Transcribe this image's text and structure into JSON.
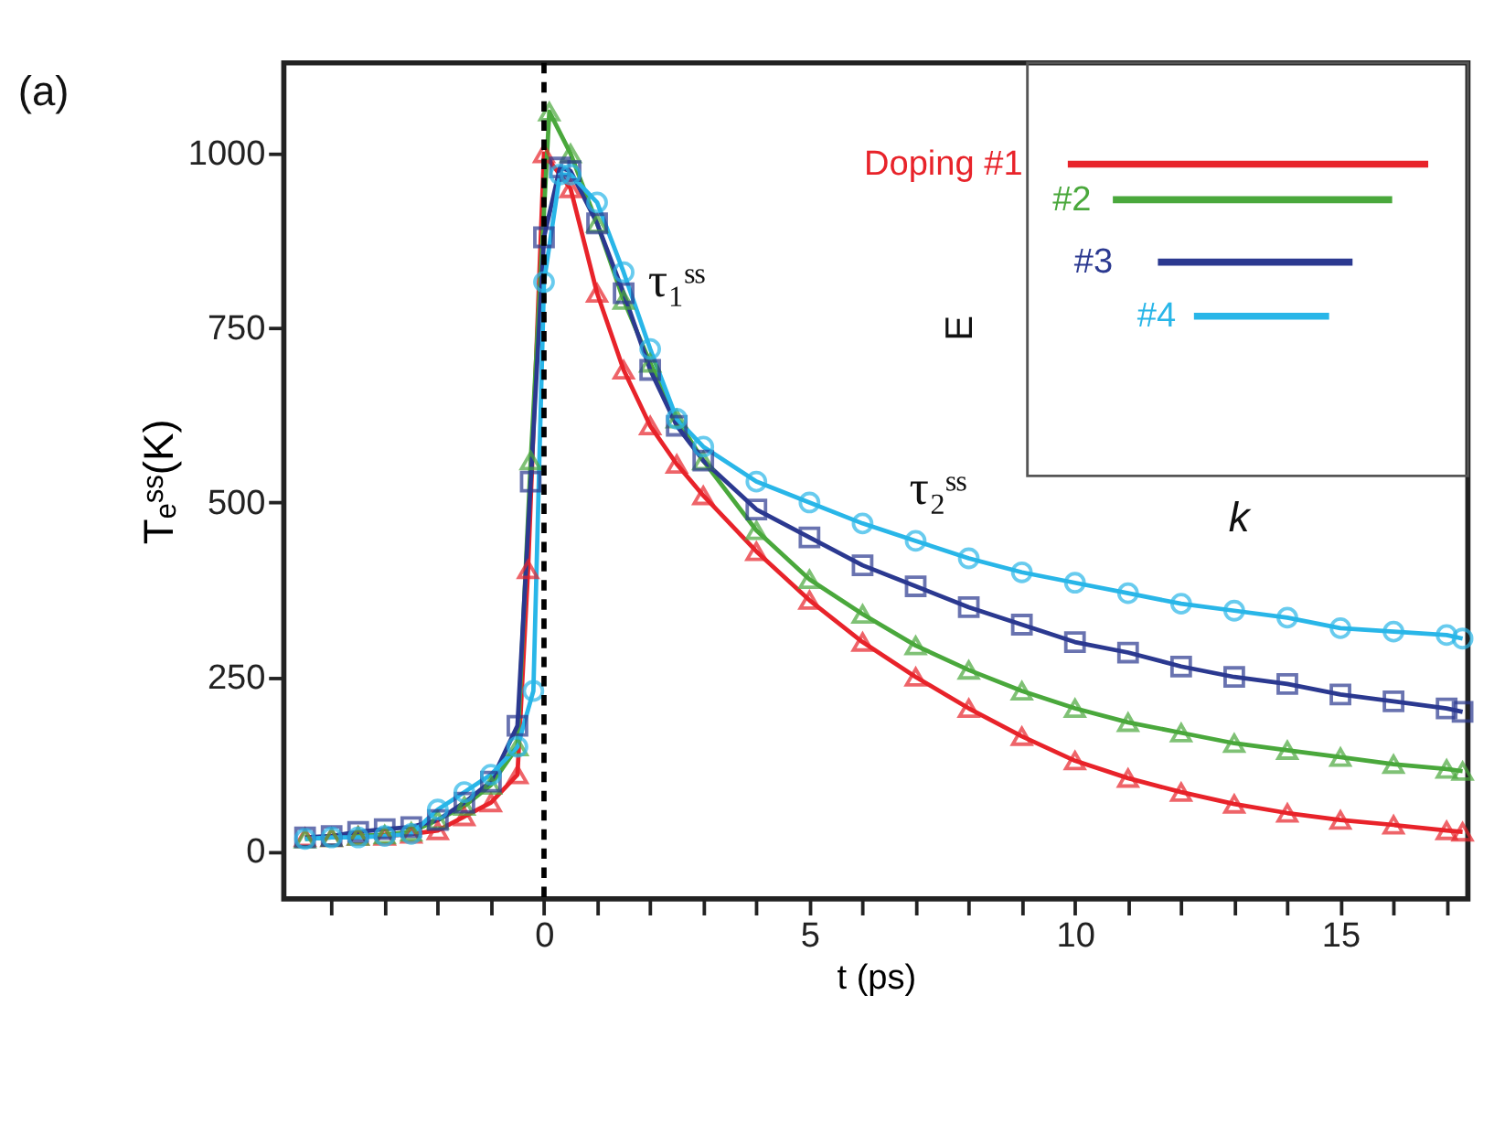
{
  "chart_data": {
    "type": "line",
    "xlabel": "t (ps)",
    "ylabel": "Tₑˢˢ(K)",
    "legend": "top right",
    "xlim": [
      -4.9,
      17.4
    ],
    "ylim": [
      -68,
      1130
    ],
    "xticks": [
      {
        "value": -4,
        "label": null
      },
      {
        "value": -3,
        "label": null
      },
      {
        "value": -2,
        "label": null
      },
      {
        "value": -1,
        "label": null
      },
      0,
      {
        "value": 1,
        "label": null
      },
      {
        "value": 2,
        "label": null
      },
      {
        "value": 3,
        "label": null
      },
      {
        "value": 4,
        "label": null
      },
      5,
      {
        "value": 6,
        "label": null
      },
      {
        "value": 7,
        "label": null
      },
      {
        "value": 8,
        "label": null
      },
      {
        "value": 9,
        "label": null
      },
      10,
      {
        "value": 11,
        "label": null
      },
      {
        "value": 12,
        "label": null
      },
      {
        "value": 13,
        "label": null
      },
      {
        "value": 14,
        "label": null
      },
      15,
      {
        "value": 16,
        "label": null
      },
      {
        "value": 17,
        "label": null
      }
    ],
    "yticks": [
      0,
      250,
      500,
      750,
      1000
    ],
    "ref_lines": [
      {
        "axis": "x",
        "value": 0,
        "color": "#000000",
        "line_style": "dashed"
      }
    ],
    "annotations": [
      "(a)",
      "τ₁ˢˢ",
      "τ₂ˢˢ",
      "E",
      "k"
    ],
    "series": [
      {
        "name": "Doping #1",
        "color": "#e8232a",
        "marker": "triangle",
        "x": [
          -4.5,
          -4,
          -3.5,
          -3,
          -2.5,
          -2,
          -1.5,
          -1,
          -0.5,
          -0.3,
          0,
          0.5,
          1,
          1.5,
          2,
          2.5,
          3,
          4,
          5,
          6,
          7,
          8,
          9,
          10,
          11,
          12,
          13,
          14,
          15,
          16,
          17,
          17.3
        ],
        "values": [
          20,
          20,
          22,
          22,
          25,
          30,
          50,
          70,
          110,
          404,
          1000,
          950,
          800,
          690,
          610,
          555,
          510,
          430,
          360,
          300,
          250,
          205,
          165,
          130,
          105,
          85,
          68,
          55,
          45,
          38,
          30,
          28
        ]
      },
      {
        "name": "#2",
        "color": "#4aa83c",
        "marker": "triangle",
        "x": [
          -4.5,
          -4,
          -3.5,
          -3,
          -2.5,
          -2,
          -1.5,
          -1,
          -0.5,
          -0.25,
          0.1,
          0.5,
          1,
          1.5,
          2,
          2.5,
          3,
          4,
          5,
          6,
          7,
          8,
          9,
          10,
          11,
          12,
          13,
          14,
          15,
          16,
          17,
          17.3
        ],
        "values": [
          18,
          20,
          22,
          24,
          28,
          45,
          65,
          95,
          150,
          560,
          1060,
          1000,
          900,
          790,
          700,
          620,
          560,
          460,
          390,
          340,
          295,
          260,
          230,
          205,
          185,
          170,
          155,
          145,
          135,
          125,
          118,
          115
        ]
      },
      {
        "name": "#3",
        "color": "#2b3990",
        "marker": "square",
        "x": [
          -4.5,
          -4,
          -3.5,
          -3,
          -2.5,
          -2,
          -1.5,
          -1,
          -0.5,
          -0.25,
          0,
          0.3,
          0.5,
          1,
          1.5,
          2,
          2.5,
          3,
          4,
          5,
          6,
          7,
          8,
          9,
          10,
          11,
          12,
          13,
          14,
          15,
          16,
          17,
          17.3
        ],
        "values": [
          20,
          22,
          28,
          32,
          35,
          45,
          70,
          100,
          180,
          530,
          880,
          980,
          975,
          900,
          800,
          690,
          610,
          560,
          490,
          450,
          410,
          380,
          350,
          325,
          300,
          285,
          265,
          250,
          240,
          225,
          215,
          205,
          200
        ]
      },
      {
        "name": "#4",
        "color": "#29b6e8",
        "marker": "circle",
        "x": [
          -4.5,
          -4,
          -3.5,
          -3,
          -2.5,
          -2,
          -1.5,
          -1,
          -0.5,
          -0.2,
          0,
          0.3,
          0.5,
          1,
          1.5,
          2,
          2.5,
          3,
          4,
          5,
          6,
          7,
          8,
          9,
          10,
          11,
          12,
          13,
          14,
          15,
          16,
          17,
          17.3
        ],
        "values": [
          18,
          20,
          20,
          22,
          25,
          60,
          85,
          110,
          150,
          230,
          816,
          970,
          970,
          930,
          830,
          720,
          620,
          580,
          530,
          500,
          470,
          445,
          420,
          400,
          385,
          370,
          355,
          345,
          335,
          320,
          315,
          310,
          305
        ]
      }
    ]
  }
}
